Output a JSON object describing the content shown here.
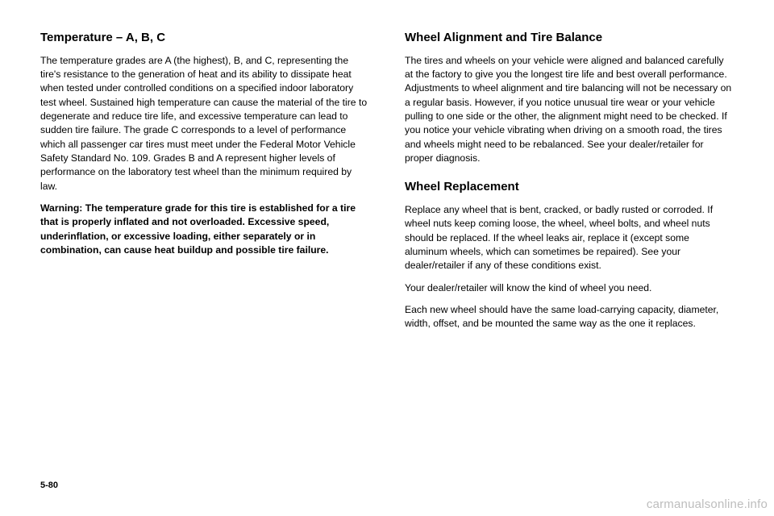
{
  "left": {
    "title": "Temperature – A, B, C",
    "p1": "The temperature grades are A (the highest), B, and C, representing the tire's resistance to the generation of heat and its ability to dissipate heat when tested under controlled conditions on a specified indoor laboratory test wheel. Sustained high temperature can cause the material of the tire to degenerate and reduce tire life, and excessive temperature can lead to sudden tire failure. The grade C corresponds to a level of performance which all passenger car tires must meet under the Federal Motor Vehicle Safety Standard No. 109. Grades B and A represent higher levels of performance on the laboratory test wheel than the minimum required by law.",
    "warning_label": "Warning:   ",
    "warning_text": "The temperature grade for this tire is established for a tire that is properly inflated and not overloaded. Excessive speed, underinflation, or excessive loading, either separately or in combination, can cause heat buildup and possible tire failure."
  },
  "right": {
    "title1": "Wheel Alignment and Tire Balance",
    "p1": "The tires and wheels on your vehicle were aligned and balanced carefully at the factory to give you the longest tire life and best overall performance. Adjustments to wheel alignment and tire balancing will not be necessary on a regular basis. However, if you notice unusual tire wear or your vehicle pulling to one side or the other, the alignment might need to be checked. If you notice your vehicle vibrating when driving on a smooth road, the tires and wheels might need to be rebalanced. See your dealer/retailer for proper diagnosis.",
    "title2": "Wheel Replacement",
    "p2": "Replace any wheel that is bent, cracked, or badly rusted or corroded. If wheel nuts keep coming loose, the wheel, wheel bolts, and wheel nuts should be replaced. If the wheel leaks air, replace it (except some aluminum wheels, which can sometimes be repaired). See your dealer/retailer if any of these conditions exist.",
    "p3": "Your dealer/retailer will know the kind of wheel you need.",
    "p4": "Each new wheel should have the same load-carrying capacity, diameter, width, offset, and be mounted the same way as the one it replaces."
  },
  "page_number": "5-80",
  "watermark": "carmanualsonline.info"
}
